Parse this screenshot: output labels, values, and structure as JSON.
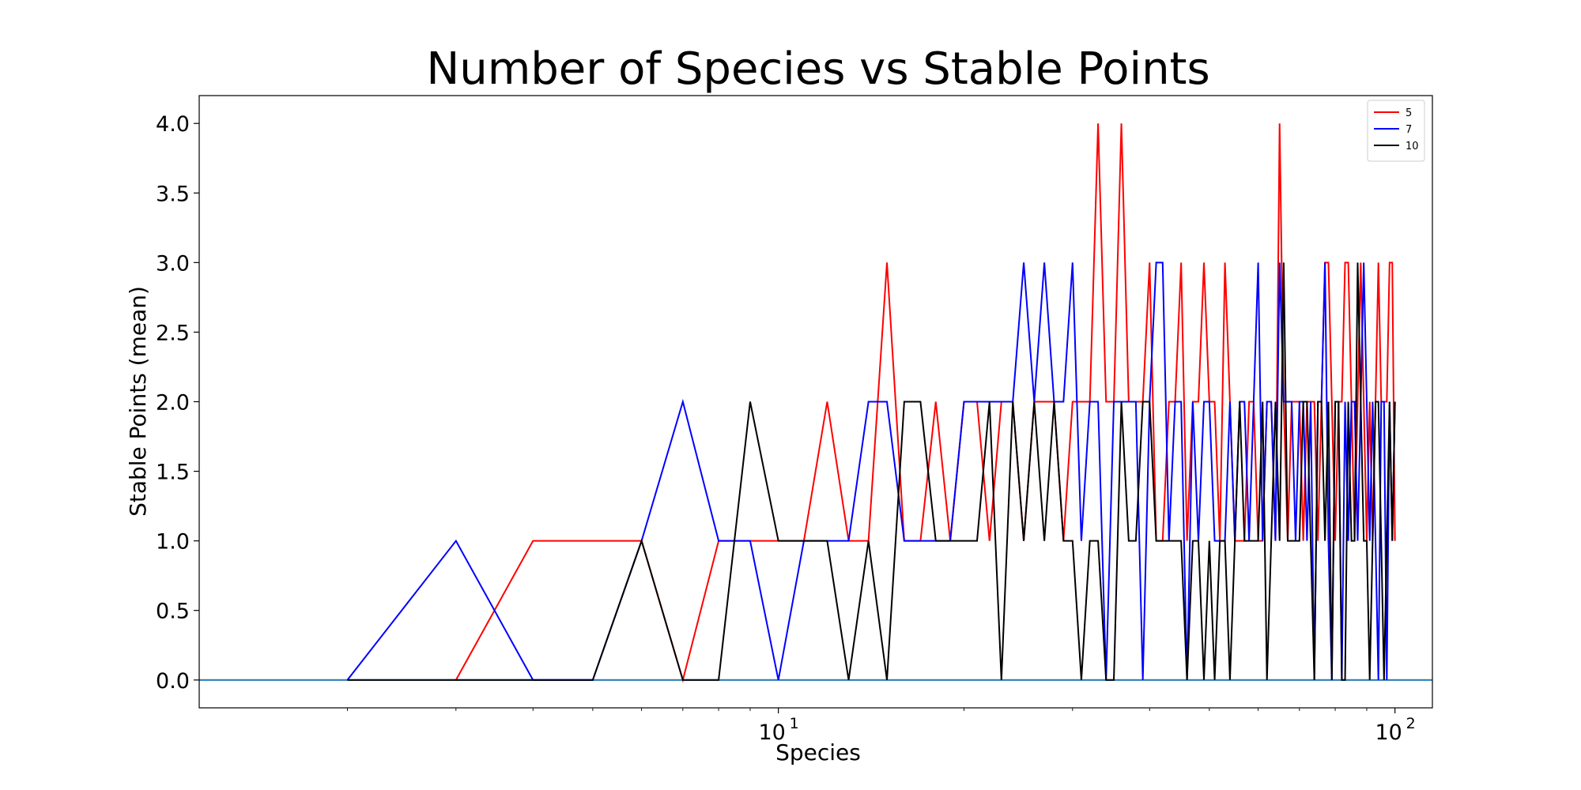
{
  "chart_data": {
    "type": "line",
    "title": "Number of Species vs Stable Points",
    "xlabel": "Species",
    "ylabel": "Stable Points (mean)",
    "xscale": "log",
    "xlim": [
      1.15,
      115
    ],
    "ylim": [
      -0.2,
      4.2
    ],
    "yticks": [
      "0.0",
      "0.5",
      "1.0",
      "1.5",
      "2.0",
      "2.5",
      "3.0",
      "3.5",
      "4.0"
    ],
    "xticks": [
      {
        "value": 10,
        "base": "10",
        "exp": "1"
      },
      {
        "value": 100,
        "base": "10",
        "exp": "2"
      }
    ],
    "grid": false,
    "legend_position": "top-right",
    "baseline": {
      "y": 0,
      "color": "#1f77b4"
    },
    "series": [
      {
        "name": "5",
        "color": "#ff0000",
        "x": [
          3,
          4,
          5,
          6,
          7,
          8,
          9,
          10,
          11,
          12,
          13,
          14,
          15,
          16,
          17,
          18,
          19,
          20,
          21,
          22,
          23,
          24,
          25,
          26,
          27,
          28,
          29,
          30,
          31,
          32,
          33,
          34,
          35,
          36,
          37,
          38,
          39,
          40,
          41,
          42,
          43,
          44,
          45,
          46,
          47,
          48,
          49,
          50,
          51,
          52,
          53,
          54,
          55,
          56,
          57,
          58,
          59,
          60,
          61,
          62,
          63,
          64,
          65,
          66,
          67,
          68,
          69,
          70,
          71,
          72,
          73,
          74,
          75,
          76,
          77,
          78,
          79,
          80,
          81,
          82,
          83,
          84,
          85,
          86,
          87,
          88,
          89,
          90,
          91,
          92,
          93,
          94,
          95,
          96,
          97,
          98,
          99,
          100
        ],
        "y": [
          0,
          1,
          1,
          1,
          0,
          1,
          1,
          1,
          1,
          2,
          1,
          1,
          3,
          1,
          1,
          2,
          1,
          2,
          2,
          1,
          2,
          2,
          1,
          2,
          2,
          2,
          1,
          2,
          2,
          2,
          4,
          2,
          2,
          4,
          2,
          2,
          2,
          3,
          1,
          1,
          2,
          2,
          3,
          1,
          2,
          2,
          3,
          2,
          2,
          1,
          3,
          2,
          1,
          1,
          1,
          2,
          2,
          1,
          1,
          2,
          2,
          1,
          4,
          2,
          1,
          2,
          2,
          2,
          1,
          2,
          2,
          2,
          1,
          2,
          3,
          3,
          2,
          1,
          2,
          2,
          3,
          3,
          2,
          1,
          2,
          3,
          2,
          1,
          2,
          1,
          2,
          3,
          2,
          2,
          2,
          3,
          3,
          1
        ]
      },
      {
        "name": "7",
        "color": "#0000ff",
        "x": [
          2,
          3,
          4,
          5,
          6,
          7,
          8,
          9,
          10,
          11,
          12,
          13,
          14,
          15,
          16,
          17,
          18,
          19,
          20,
          21,
          22,
          23,
          24,
          25,
          26,
          27,
          28,
          29,
          30,
          31,
          32,
          33,
          34,
          35,
          36,
          37,
          38,
          39,
          40,
          41,
          42,
          43,
          44,
          45,
          46,
          47,
          48,
          49,
          50,
          51,
          52,
          53,
          54,
          55,
          56,
          57,
          58,
          59,
          60,
          61,
          62,
          63,
          64,
          65,
          66,
          67,
          68,
          69,
          70,
          71,
          72,
          73,
          74,
          75,
          76,
          77,
          78,
          79,
          80,
          81,
          82,
          83,
          84,
          85,
          86,
          87,
          88,
          89,
          90,
          91,
          92,
          93,
          94,
          95,
          96,
          97,
          98,
          99,
          100
        ],
        "y": [
          0,
          1,
          0,
          0,
          1,
          2,
          1,
          1,
          0,
          1,
          1,
          1,
          2,
          2,
          1,
          1,
          1,
          1,
          2,
          2,
          2,
          2,
          2,
          3,
          2,
          3,
          2,
          2,
          3,
          1,
          2,
          2,
          0,
          2,
          2,
          2,
          2,
          0,
          2,
          3,
          3,
          1,
          2,
          2,
          0,
          2,
          1,
          2,
          2,
          1,
          1,
          1,
          2,
          1,
          2,
          2,
          1,
          2,
          3,
          1,
          2,
          2,
          1,
          3,
          2,
          2,
          2,
          1,
          2,
          2,
          1,
          2,
          0,
          2,
          2,
          3,
          1,
          0,
          2,
          2,
          0,
          2,
          1,
          2,
          2,
          1,
          2,
          3,
          2,
          1,
          2,
          1,
          0,
          2,
          2,
          0,
          2,
          1,
          2
        ]
      },
      {
        "name": "10",
        "color": "#000000",
        "x": [
          2,
          3,
          4,
          5,
          6,
          7,
          8,
          9,
          10,
          11,
          12,
          13,
          14,
          15,
          16,
          17,
          18,
          19,
          20,
          21,
          22,
          23,
          24,
          25,
          26,
          27,
          28,
          29,
          30,
          31,
          32,
          33,
          34,
          35,
          36,
          37,
          38,
          39,
          40,
          41,
          42,
          43,
          44,
          45,
          46,
          47,
          48,
          49,
          50,
          51,
          52,
          53,
          54,
          55,
          56,
          57,
          58,
          59,
          60,
          61,
          62,
          63,
          64,
          65,
          66,
          67,
          68,
          69,
          70,
          71,
          72,
          73,
          74,
          75,
          76,
          77,
          78,
          79,
          80,
          81,
          82,
          83,
          84,
          85,
          86,
          87,
          88,
          89,
          90,
          91,
          92,
          93,
          94,
          95,
          96,
          97,
          98,
          99,
          100
        ],
        "y": [
          0,
          0,
          0,
          0,
          1,
          0,
          0,
          2,
          1,
          1,
          1,
          0,
          1,
          0,
          2,
          2,
          1,
          1,
          1,
          1,
          2,
          0,
          2,
          1,
          2,
          1,
          2,
          1,
          1,
          0,
          1,
          1,
          0,
          0,
          2,
          1,
          1,
          2,
          2,
          1,
          1,
          1,
          1,
          1,
          0,
          1,
          1,
          0,
          1,
          0,
          1,
          1,
          0,
          1,
          2,
          1,
          1,
          1,
          1,
          2,
          0,
          1,
          2,
          1,
          3,
          1,
          1,
          1,
          1,
          2,
          2,
          1,
          0,
          2,
          2,
          1,
          2,
          0,
          2,
          2,
          0,
          0,
          2,
          1,
          1,
          3,
          2,
          1,
          1,
          0,
          1,
          2,
          2,
          1,
          0,
          1,
          2,
          1,
          2
        ]
      }
    ]
  }
}
